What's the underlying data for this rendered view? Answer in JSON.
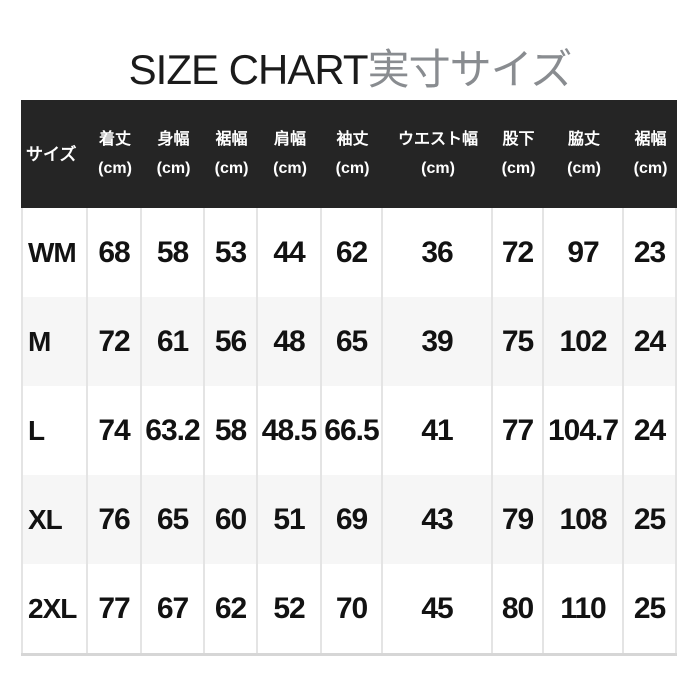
{
  "title": {
    "latin": "SIZE CHART",
    "japanese": "実寸サイズ"
  },
  "colors": {
    "header_bg": "#252525",
    "header_text": "#ffffff",
    "row_bg": "#ffffff",
    "row_alt_bg": "#f6f6f6",
    "grid_line": "#e4e4e4",
    "bottom_border": "#d6d6d6",
    "title_latin": "#1b1b1b",
    "title_japanese": "#898c90",
    "body_text": "#121212"
  },
  "table": {
    "header": {
      "size_label": "サイズ",
      "columns": [
        {
          "label": "着丈",
          "unit": "(cm)"
        },
        {
          "label": "身幅",
          "unit": "(cm)"
        },
        {
          "label": "裾幅",
          "unit": "(cm)"
        },
        {
          "label": "肩幅",
          "unit": "(cm)"
        },
        {
          "label": "袖丈",
          "unit": "(cm)"
        },
        {
          "label": "ウエスト幅",
          "unit": "(cm)"
        },
        {
          "label": "股下",
          "unit": "(cm)"
        },
        {
          "label": "脇丈",
          "unit": "(cm)"
        },
        {
          "label": "裾幅",
          "unit": "(cm)"
        }
      ]
    },
    "rows": [
      {
        "size": "WM",
        "values": [
          "68",
          "58",
          "53",
          "44",
          "62",
          "36",
          "72",
          "97",
          "23"
        ]
      },
      {
        "size": "M",
        "values": [
          "72",
          "61",
          "56",
          "48",
          "65",
          "39",
          "75",
          "102",
          "24"
        ]
      },
      {
        "size": "L",
        "values": [
          "74",
          "63.2",
          "58",
          "48.5",
          "66.5",
          "41",
          "77",
          "104.7",
          "24"
        ]
      },
      {
        "size": "XL",
        "values": [
          "76",
          "65",
          "60",
          "51",
          "69",
          "43",
          "79",
          "108",
          "25"
        ]
      },
      {
        "size": "2XL",
        "values": [
          "77",
          "67",
          "62",
          "52",
          "70",
          "45",
          "80",
          "110",
          "25"
        ]
      }
    ]
  },
  "chart_data": {
    "type": "table",
    "title": "SIZE CHART実寸サイズ",
    "columns": [
      "サイズ",
      "着丈(cm)",
      "身幅(cm)",
      "裾幅(cm)",
      "肩幅(cm)",
      "袖丈(cm)",
      "ウエスト幅(cm)",
      "股下(cm)",
      "脇丈(cm)",
      "裾幅(cm)"
    ],
    "rows": [
      [
        "WM",
        68,
        58,
        53,
        44,
        62,
        36,
        72,
        97,
        23
      ],
      [
        "M",
        72,
        61,
        56,
        48,
        65,
        39,
        75,
        102,
        24
      ],
      [
        "L",
        74,
        63.2,
        58,
        48.5,
        66.5,
        41,
        77,
        104.7,
        24
      ],
      [
        "XL",
        76,
        65,
        60,
        51,
        69,
        43,
        79,
        108,
        25
      ],
      [
        "2XL",
        77,
        67,
        62,
        52,
        70,
        45,
        80,
        110,
        25
      ]
    ]
  }
}
